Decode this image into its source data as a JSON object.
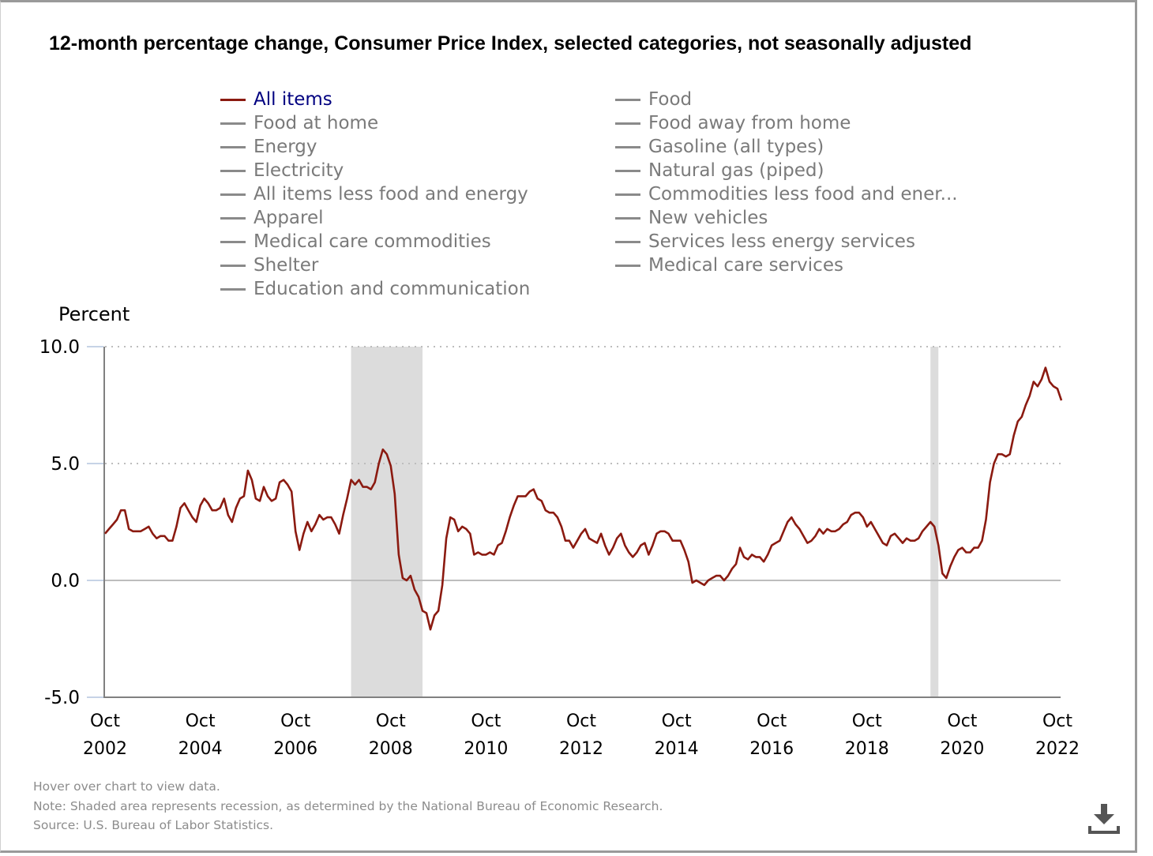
{
  "title": "12-month percentage change, Consumer Price Index, selected categories, not seasonally adjusted",
  "legend": {
    "left": [
      {
        "label": "All items",
        "active": true
      },
      {
        "label": "Food at home",
        "active": false
      },
      {
        "label": "Energy",
        "active": false
      },
      {
        "label": "Electricity",
        "active": false
      },
      {
        "label": "All items less food and energy",
        "active": false
      },
      {
        "label": "Apparel",
        "active": false
      },
      {
        "label": "Medical care commodities",
        "active": false
      },
      {
        "label": "Shelter",
        "active": false
      },
      {
        "label": "Education and communication",
        "active": false
      }
    ],
    "right": [
      {
        "label": "Food",
        "active": false
      },
      {
        "label": "Food away from home",
        "active": false
      },
      {
        "label": "Gasoline (all types)",
        "active": false
      },
      {
        "label": "Natural gas (piped)",
        "active": false
      },
      {
        "label": "Commodities less food and ener...",
        "active": false
      },
      {
        "label": "New vehicles",
        "active": false
      },
      {
        "label": "Services less energy services",
        "active": false
      },
      {
        "label": "Medical care services",
        "active": false
      }
    ]
  },
  "footer": {
    "hover_hint": "Hover over chart to view data.",
    "note": "Note: Shaded area represents recession, as determined by the National Bureau of Economic Research.",
    "source": "Source: U.S. Bureau of Labor Statistics."
  },
  "download_icon": "download-icon",
  "colors": {
    "series": "#8b1a10",
    "recession": "#dcdcdc",
    "legend_active_text": "#000080",
    "legend_inactive": "#7a7a7a"
  },
  "chart_data": {
    "type": "line",
    "title": "12-month percentage change, Consumer Price Index, selected categories, not seasonally adjusted",
    "xlabel": "",
    "ylabel": "Percent",
    "ylim": [
      -5.0,
      10.0
    ],
    "yticks": [
      "10.0",
      "5.0",
      "0.0",
      "-5.0"
    ],
    "ytick_values": [
      10,
      5,
      0,
      -5
    ],
    "grid": "horizontal-dotted",
    "x_start": "2002-10",
    "x_end": "2022-10",
    "xticks": [
      {
        "month": "Oct",
        "year": "2002",
        "date": "2002-10"
      },
      {
        "month": "Oct",
        "year": "2004",
        "date": "2004-10"
      },
      {
        "month": "Oct",
        "year": "2006",
        "date": "2006-10"
      },
      {
        "month": "Oct",
        "year": "2008",
        "date": "2008-10"
      },
      {
        "month": "Oct",
        "year": "2010",
        "date": "2010-10"
      },
      {
        "month": "Oct",
        "year": "2012",
        "date": "2012-10"
      },
      {
        "month": "Oct",
        "year": "2014",
        "date": "2014-10"
      },
      {
        "month": "Oct",
        "year": "2016",
        "date": "2016-10"
      },
      {
        "month": "Oct",
        "year": "2018",
        "date": "2018-10"
      },
      {
        "month": "Oct",
        "year": "2020",
        "date": "2020-10"
      },
      {
        "month": "Oct",
        "year": "2022",
        "date": "2022-10"
      }
    ],
    "recessions": [
      {
        "start": "2007-12",
        "end": "2009-06"
      },
      {
        "start": "2020-02",
        "end": "2020-04"
      }
    ],
    "legend_position": "top",
    "series": [
      {
        "name": "All items",
        "frequency": "monthly",
        "start": "2002-10",
        "values": [
          2.0,
          2.2,
          2.4,
          2.6,
          3.0,
          3.0,
          2.2,
          2.1,
          2.1,
          2.1,
          2.2,
          2.3,
          2.0,
          1.8,
          1.9,
          1.9,
          1.7,
          1.7,
          2.3,
          3.1,
          3.3,
          3.0,
          2.7,
          2.5,
          3.2,
          3.5,
          3.3,
          3.0,
          3.0,
          3.1,
          3.5,
          2.8,
          2.5,
          3.1,
          3.5,
          3.6,
          4.7,
          4.3,
          3.5,
          3.4,
          4.0,
          3.6,
          3.4,
          3.5,
          4.2,
          4.3,
          4.1,
          3.8,
          2.1,
          1.3,
          2.0,
          2.5,
          2.1,
          2.4,
          2.8,
          2.6,
          2.7,
          2.7,
          2.4,
          2.0,
          2.8,
          3.5,
          4.3,
          4.1,
          4.3,
          4.0,
          4.0,
          3.9,
          4.2,
          5.0,
          5.6,
          5.4,
          4.9,
          3.7,
          1.1,
          0.1,
          0.0,
          0.2,
          -0.4,
          -0.7,
          -1.3,
          -1.4,
          -2.1,
          -1.5,
          -1.3,
          -0.2,
          1.8,
          2.7,
          2.6,
          2.1,
          2.3,
          2.2,
          2.0,
          1.1,
          1.2,
          1.1,
          1.1,
          1.2,
          1.1,
          1.5,
          1.6,
          2.1,
          2.7,
          3.2,
          3.6,
          3.6,
          3.6,
          3.8,
          3.9,
          3.5,
          3.4,
          3.0,
          2.9,
          2.9,
          2.7,
          2.3,
          1.7,
          1.7,
          1.4,
          1.7,
          2.0,
          2.2,
          1.8,
          1.7,
          1.6,
          2.0,
          1.5,
          1.1,
          1.4,
          1.8,
          2.0,
          1.5,
          1.2,
          1.0,
          1.2,
          1.5,
          1.6,
          1.1,
          1.5,
          2.0,
          2.1,
          2.1,
          2.0,
          1.7,
          1.7,
          1.7,
          1.3,
          0.8,
          -0.1,
          0.0,
          -0.1,
          -0.2,
          0.0,
          0.1,
          0.2,
          0.2,
          0.0,
          0.2,
          0.5,
          0.7,
          1.4,
          1.0,
          0.9,
          1.1,
          1.0,
          1.0,
          0.8,
          1.1,
          1.5,
          1.6,
          1.7,
          2.1,
          2.5,
          2.7,
          2.4,
          2.2,
          1.9,
          1.6,
          1.7,
          1.9,
          2.2,
          2.0,
          2.2,
          2.1,
          2.1,
          2.2,
          2.4,
          2.5,
          2.8,
          2.9,
          2.9,
          2.7,
          2.3,
          2.5,
          2.2,
          1.9,
          1.6,
          1.5,
          1.9,
          2.0,
          1.8,
          1.6,
          1.8,
          1.7,
          1.7,
          1.8,
          2.1,
          2.3,
          2.5,
          2.3,
          1.5,
          0.3,
          0.1,
          0.6,
          1.0,
          1.3,
          1.4,
          1.2,
          1.2,
          1.4,
          1.4,
          1.7,
          2.6,
          4.2,
          5.0,
          5.4,
          5.4,
          5.3,
          5.4,
          6.2,
          6.8,
          7.0,
          7.5,
          7.9,
          8.5,
          8.3,
          8.6,
          9.1,
          8.5,
          8.3,
          8.2,
          7.7
        ]
      }
    ]
  }
}
